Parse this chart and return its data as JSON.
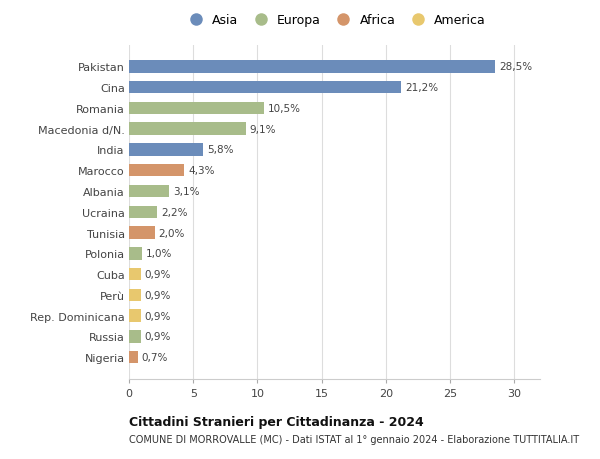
{
  "countries": [
    "Pakistan",
    "Cina",
    "Romania",
    "Macedonia d/N.",
    "India",
    "Marocco",
    "Albania",
    "Ucraina",
    "Tunisia",
    "Polonia",
    "Cuba",
    "Perù",
    "Rep. Dominicana",
    "Russia",
    "Nigeria"
  ],
  "values": [
    28.5,
    21.2,
    10.5,
    9.1,
    5.8,
    4.3,
    3.1,
    2.2,
    2.0,
    1.0,
    0.9,
    0.9,
    0.9,
    0.9,
    0.7
  ],
  "labels": [
    "28,5%",
    "21,2%",
    "10,5%",
    "9,1%",
    "5,8%",
    "4,3%",
    "3,1%",
    "2,2%",
    "2,0%",
    "1,0%",
    "0,9%",
    "0,9%",
    "0,9%",
    "0,9%",
    "0,7%"
  ],
  "continents": [
    "Asia",
    "Asia",
    "Europa",
    "Europa",
    "Asia",
    "Africa",
    "Europa",
    "Europa",
    "Africa",
    "Europa",
    "America",
    "America",
    "America",
    "Europa",
    "Africa"
  ],
  "colors": {
    "Asia": "#6b8cba",
    "Europa": "#a8bc8a",
    "Africa": "#d4956a",
    "America": "#e8c86e"
  },
  "legend_order": [
    "Asia",
    "Europa",
    "Africa",
    "America"
  ],
  "title": "Cittadini Stranieri per Cittadinanza - 2024",
  "subtitle": "COMUNE DI MORROVALLE (MC) - Dati ISTAT al 1° gennaio 2024 - Elaborazione TUTTITALIA.IT",
  "xlim": [
    0,
    32
  ],
  "xticks": [
    0,
    5,
    10,
    15,
    20,
    25,
    30
  ],
  "background_color": "#ffffff",
  "grid_color": "#dddddd",
  "bar_height": 0.6
}
